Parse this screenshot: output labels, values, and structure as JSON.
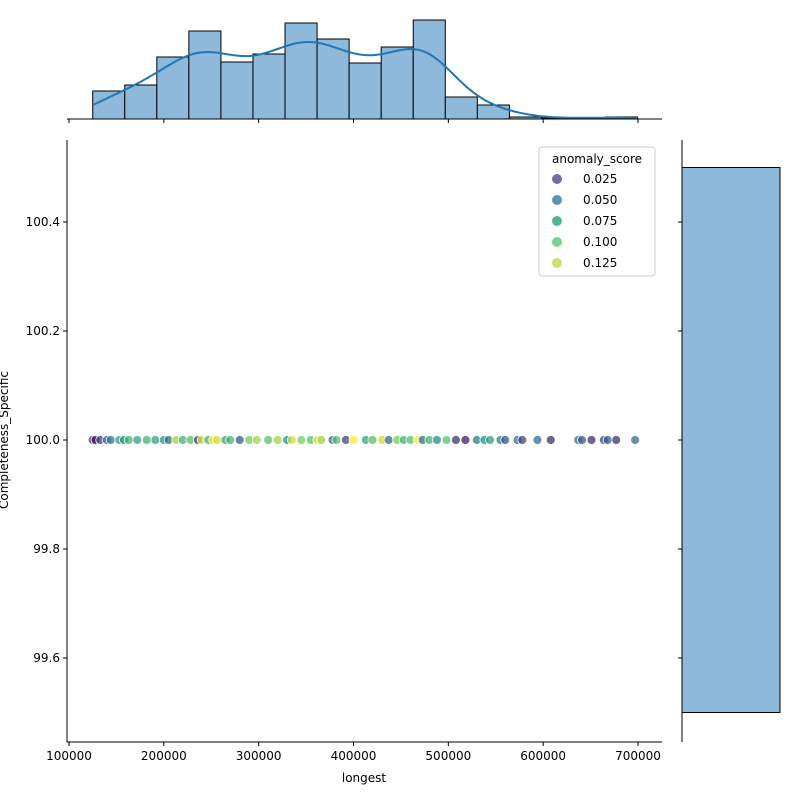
{
  "chart_data": {
    "type": "scatter",
    "subtype": "jointplot",
    "xlabel": "longest",
    "ylabel": "Completeness_Specific",
    "xlim": [
      97000,
      727000
    ],
    "ylim": [
      99.45,
      100.55
    ],
    "xticks": [
      100000,
      200000,
      300000,
      400000,
      500000,
      600000,
      700000
    ],
    "xtick_labels": [
      "100000",
      "200000",
      "300000",
      "400000",
      "500000",
      "600000",
      "700000"
    ],
    "yticks": [
      99.6,
      99.8,
      100.0,
      100.2,
      100.4
    ],
    "ytick_labels": [
      "99.6",
      "99.8",
      "100.0",
      "100.2",
      "100.4"
    ],
    "legend": {
      "title": "anomaly_score",
      "placement": "top-right",
      "entries": [
        {
          "label": "0.025",
          "color": "#7b6aa8"
        },
        {
          "label": "0.050",
          "color": "#5d93ad"
        },
        {
          "label": "0.075",
          "color": "#4fb89a"
        },
        {
          "label": "0.100",
          "color": "#79d38f"
        },
        {
          "label": "0.125",
          "color": "#c8e26a"
        }
      ]
    },
    "points": [
      [
        125000,
        0.02
      ],
      [
        128000,
        0.01
      ],
      [
        133000,
        0.03
      ],
      [
        140000,
        0.04
      ],
      [
        144000,
        0.06
      ],
      [
        153000,
        0.08
      ],
      [
        158000,
        0.07
      ],
      [
        163000,
        0.09
      ],
      [
        172000,
        0.08
      ],
      [
        182000,
        0.09
      ],
      [
        191000,
        0.08
      ],
      [
        200000,
        0.07
      ],
      [
        205000,
        0.05
      ],
      [
        213000,
        0.12
      ],
      [
        220000,
        0.09
      ],
      [
        228000,
        0.1
      ],
      [
        236000,
        0.02
      ],
      [
        240000,
        0.13
      ],
      [
        247000,
        0.09
      ],
      [
        252000,
        0.14
      ],
      [
        256000,
        0.13
      ],
      [
        265000,
        0.08
      ],
      [
        270000,
        0.09
      ],
      [
        280000,
        0.04
      ],
      [
        290000,
        0.11
      ],
      [
        298000,
        0.12
      ],
      [
        310000,
        0.1
      ],
      [
        320000,
        0.12
      ],
      [
        330000,
        0.07
      ],
      [
        335000,
        0.13
      ],
      [
        345000,
        0.11
      ],
      [
        355000,
        0.1
      ],
      [
        362000,
        0.13
      ],
      [
        366000,
        0.12
      ],
      [
        378000,
        0.04
      ],
      [
        382000,
        0.1
      ],
      [
        392000,
        0.03
      ],
      [
        400000,
        0.14
      ],
      [
        413000,
        0.08
      ],
      [
        420000,
        0.1
      ],
      [
        430000,
        0.13
      ],
      [
        437000,
        0.05
      ],
      [
        446000,
        0.11
      ],
      [
        453000,
        0.09
      ],
      [
        460000,
        0.1
      ],
      [
        468000,
        0.14
      ],
      [
        473000,
        0.05
      ],
      [
        480000,
        0.09
      ],
      [
        488000,
        0.07
      ],
      [
        498000,
        0.1
      ],
      [
        508000,
        0.02
      ],
      [
        518000,
        0.01
      ],
      [
        530000,
        0.06
      ],
      [
        538000,
        0.07
      ],
      [
        544000,
        0.08
      ],
      [
        555000,
        0.06
      ],
      [
        560000,
        0.04
      ],
      [
        573000,
        0.05
      ],
      [
        578000,
        0.03
      ],
      [
        594000,
        0.05
      ],
      [
        608000,
        0.02
      ],
      [
        637000,
        0.05
      ],
      [
        641000,
        0.04
      ],
      [
        651000,
        0.02
      ],
      [
        664000,
        0.03
      ],
      [
        668000,
        0.04
      ],
      [
        677000,
        0.02
      ],
      [
        697000,
        0.05
      ]
    ],
    "x_marginal": {
      "type": "histogram+kde",
      "bin_edges_start": 125000,
      "bin_width": 33800,
      "counts": [
        28,
        34,
        62,
        88,
        57,
        65,
        96,
        80,
        56,
        72,
        99,
        22,
        14,
        2,
        1,
        1,
        2
      ]
    },
    "y_marginal": {
      "type": "histogram",
      "range": [
        99.5,
        100.5
      ],
      "counts": [
        68
      ]
    }
  }
}
